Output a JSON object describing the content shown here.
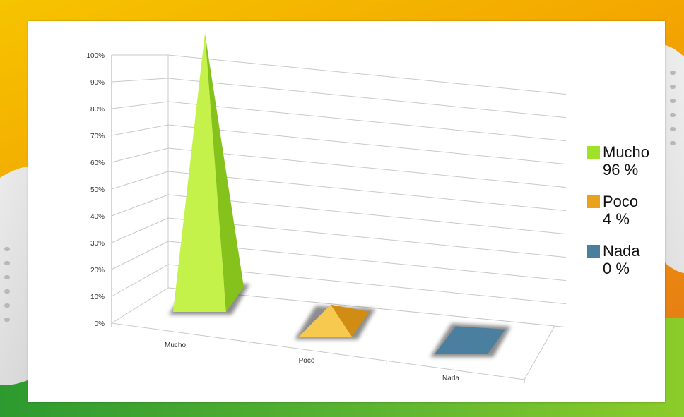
{
  "chart_data": {
    "type": "bar",
    "style": "3d-pyramid",
    "categories": [
      "Mucho",
      "Poco",
      "Nada"
    ],
    "values": [
      96,
      4,
      0
    ],
    "ylim": [
      0,
      100
    ],
    "yticks": [
      "0%",
      "10%",
      "20%",
      "30%",
      "40%",
      "50%",
      "60%",
      "70%",
      "80%",
      "90%",
      "100%"
    ],
    "grid": true,
    "legend_position": "right",
    "legend": [
      {
        "label": "Mucho",
        "percent": "96 %",
        "color": "#9fe22a"
      },
      {
        "label": "Poco",
        "percent": "4 %",
        "color": "#e8a21c"
      },
      {
        "label": "Nada",
        "percent": "0 %",
        "color": "#4a7fa0"
      }
    ]
  }
}
